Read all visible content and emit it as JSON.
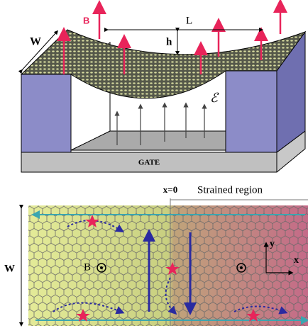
{
  "top": {
    "w_label": "W",
    "b_label": "B",
    "l_label": "L",
    "h_label": "h",
    "e_label": "ℰ",
    "gate_label": "GATE"
  },
  "bottom": {
    "x0_label": "x=0",
    "region_label": "Strained region",
    "w_label": "W",
    "b_label": "B",
    "y_axis": "y",
    "x_axis": "x"
  }
}
